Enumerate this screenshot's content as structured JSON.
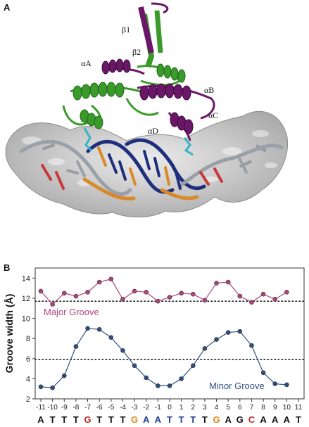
{
  "panels": {
    "a_label": "A",
    "b_label": "B"
  },
  "structure": {
    "labels": {
      "beta1": "β1",
      "beta2": "β2",
      "alphaA": "αA",
      "alphaB": "αB",
      "alphaC": "αC",
      "alphaD": "αD"
    },
    "colors": {
      "protein_green": "#3a9a2a",
      "protein_purple": "#6a1768",
      "dna_blue": "#1f2e7d",
      "dna_orange": "#d9892a",
      "dna_red": "#c83a3a",
      "side_chain_cyan": "#33b5c6",
      "surface_gray": "#c9c9c9"
    }
  },
  "chart_data": {
    "type": "line",
    "ylabel": "Groove width (Å)",
    "xlabel": "",
    "ylim": [
      2,
      15
    ],
    "yticks": [
      2,
      4,
      6,
      8,
      10,
      12,
      14
    ],
    "x": [
      -11,
      -10,
      -9,
      -8,
      -7,
      -6,
      -5,
      -4,
      -3,
      -2,
      -1,
      0,
      1,
      2,
      3,
      4,
      5,
      6,
      7,
      8,
      9,
      10,
      11
    ],
    "reference_lines": [
      11.7,
      5.9
    ],
    "series": [
      {
        "name": "Major Groove",
        "color": "#b0447f",
        "x": [
          -11,
          -10,
          -9,
          -8,
          -7,
          -6,
          -5,
          -4,
          -3,
          -2,
          -1,
          0,
          1,
          2,
          3,
          4,
          5,
          6,
          7,
          8,
          9,
          10,
          11
        ],
        "values": [
          12.7,
          11.4,
          12.5,
          12.2,
          12.6,
          13.6,
          13.9,
          11.9,
          12.7,
          12.6,
          11.7,
          12.1,
          12.5,
          12.4,
          11.8,
          13.5,
          13.6,
          12.2,
          11.6,
          12.4,
          11.9,
          12.6,
          null
        ]
      },
      {
        "name": "Minor Groove",
        "color": "#2c4f80",
        "x": [
          -11,
          -10,
          -9,
          -8,
          -7,
          -6,
          -5,
          -4,
          -3,
          -2,
          -1,
          0,
          1,
          2,
          3,
          4,
          5,
          6,
          7,
          8,
          9,
          10,
          11
        ],
        "values": [
          3.2,
          3.1,
          4.3,
          7.2,
          9.0,
          8.9,
          8.1,
          6.8,
          5.3,
          4.1,
          3.3,
          3.3,
          4.0,
          5.3,
          7.0,
          7.9,
          8.6,
          8.7,
          7.3,
          4.6,
          3.5,
          3.4,
          null
        ]
      }
    ],
    "series_labels": [
      "Major Groove",
      "Minor Groove"
    ],
    "sequence": {
      "letters": [
        "A",
        "T",
        "T",
        "T",
        "G",
        "T",
        "T",
        "T",
        "G",
        "A",
        "A",
        "T",
        "T",
        "T",
        "T",
        "G",
        "A",
        "G",
        "C",
        "A",
        "A",
        "A",
        "T"
      ],
      "colors": [
        "#111111",
        "#111111",
        "#111111",
        "#111111",
        "#c62828",
        "#111111",
        "#111111",
        "#111111",
        "#e08a1e",
        "#1f3a93",
        "#1f3a93",
        "#1f3a93",
        "#1f3a93",
        "#1f3a93",
        "#111111",
        "#e08a1e",
        "#111111",
        "#111111",
        "#c62828",
        "#111111",
        "#111111",
        "#111111",
        "#111111"
      ]
    }
  }
}
